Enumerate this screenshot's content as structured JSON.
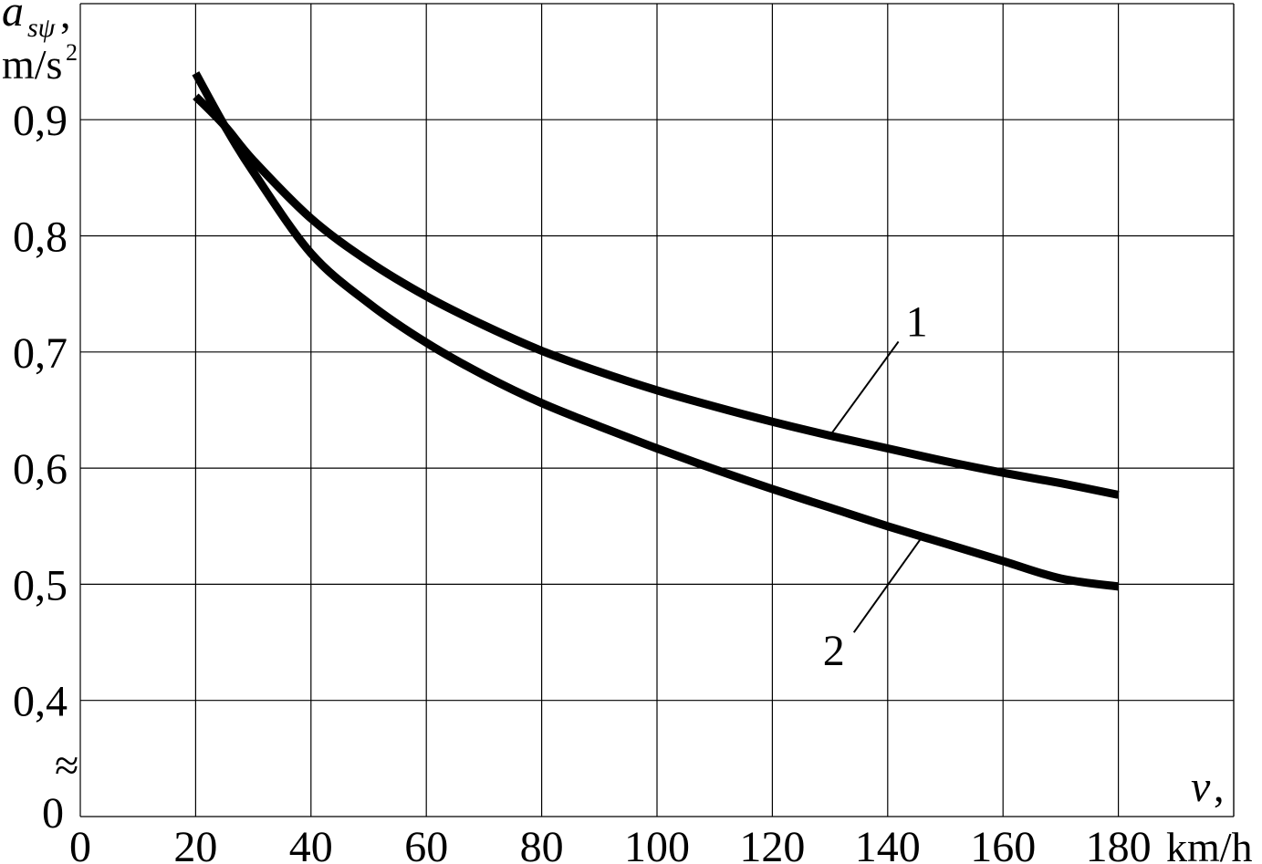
{
  "chart_data": {
    "type": "line",
    "ylabel_symbol": "a",
    "ylabel_subscript": "sψ",
    "ylabel_suffix": ",",
    "yunit": "m/s",
    "yunit_sup": "2",
    "xlabel_symbol": "v",
    "xlabel_suffix": ",",
    "xunit": "km/h",
    "xlim": [
      0,
      200
    ],
    "ylim": [
      0.3,
      1.0
    ],
    "y_axis_break": true,
    "y_break_symbol": "≈",
    "y_zero_label": "0",
    "grid": true,
    "x_ticks": [
      0,
      20,
      40,
      60,
      80,
      100,
      120,
      140,
      160,
      180
    ],
    "x_tick_labels": [
      "0",
      "20",
      "40",
      "60",
      "80",
      "100",
      "120",
      "140",
      "160",
      "180"
    ],
    "y_ticks": [
      0.4,
      0.5,
      0.6,
      0.7,
      0.8,
      0.9
    ],
    "y_tick_labels": [
      "0,4",
      "0,5",
      "0,6",
      "0,7",
      "0,8",
      "0,9"
    ],
    "series": [
      {
        "name": "1",
        "x": [
          20,
          25,
          30,
          40,
          50,
          60,
          70,
          80,
          90,
          100,
          110,
          120,
          130,
          140,
          150,
          160,
          170,
          180
        ],
        "y": [
          0.92,
          0.895,
          0.865,
          0.815,
          0.778,
          0.748,
          0.723,
          0.701,
          0.683,
          0.667,
          0.653,
          0.64,
          0.628,
          0.617,
          0.606,
          0.596,
          0.587,
          0.577
        ]
      },
      {
        "name": "2",
        "x": [
          20,
          25,
          30,
          40,
          50,
          60,
          70,
          80,
          90,
          100,
          110,
          120,
          130,
          140,
          150,
          160,
          170,
          180
        ],
        "y": [
          0.94,
          0.895,
          0.855,
          0.785,
          0.742,
          0.708,
          0.68,
          0.656,
          0.636,
          0.617,
          0.599,
          0.582,
          0.566,
          0.55,
          0.535,
          0.52,
          0.505,
          0.498
        ]
      }
    ],
    "annotations": [
      {
        "label": "1",
        "series": "1",
        "at_x": 130
      },
      {
        "label": "2",
        "series": "2",
        "at_x": 146
      }
    ]
  }
}
